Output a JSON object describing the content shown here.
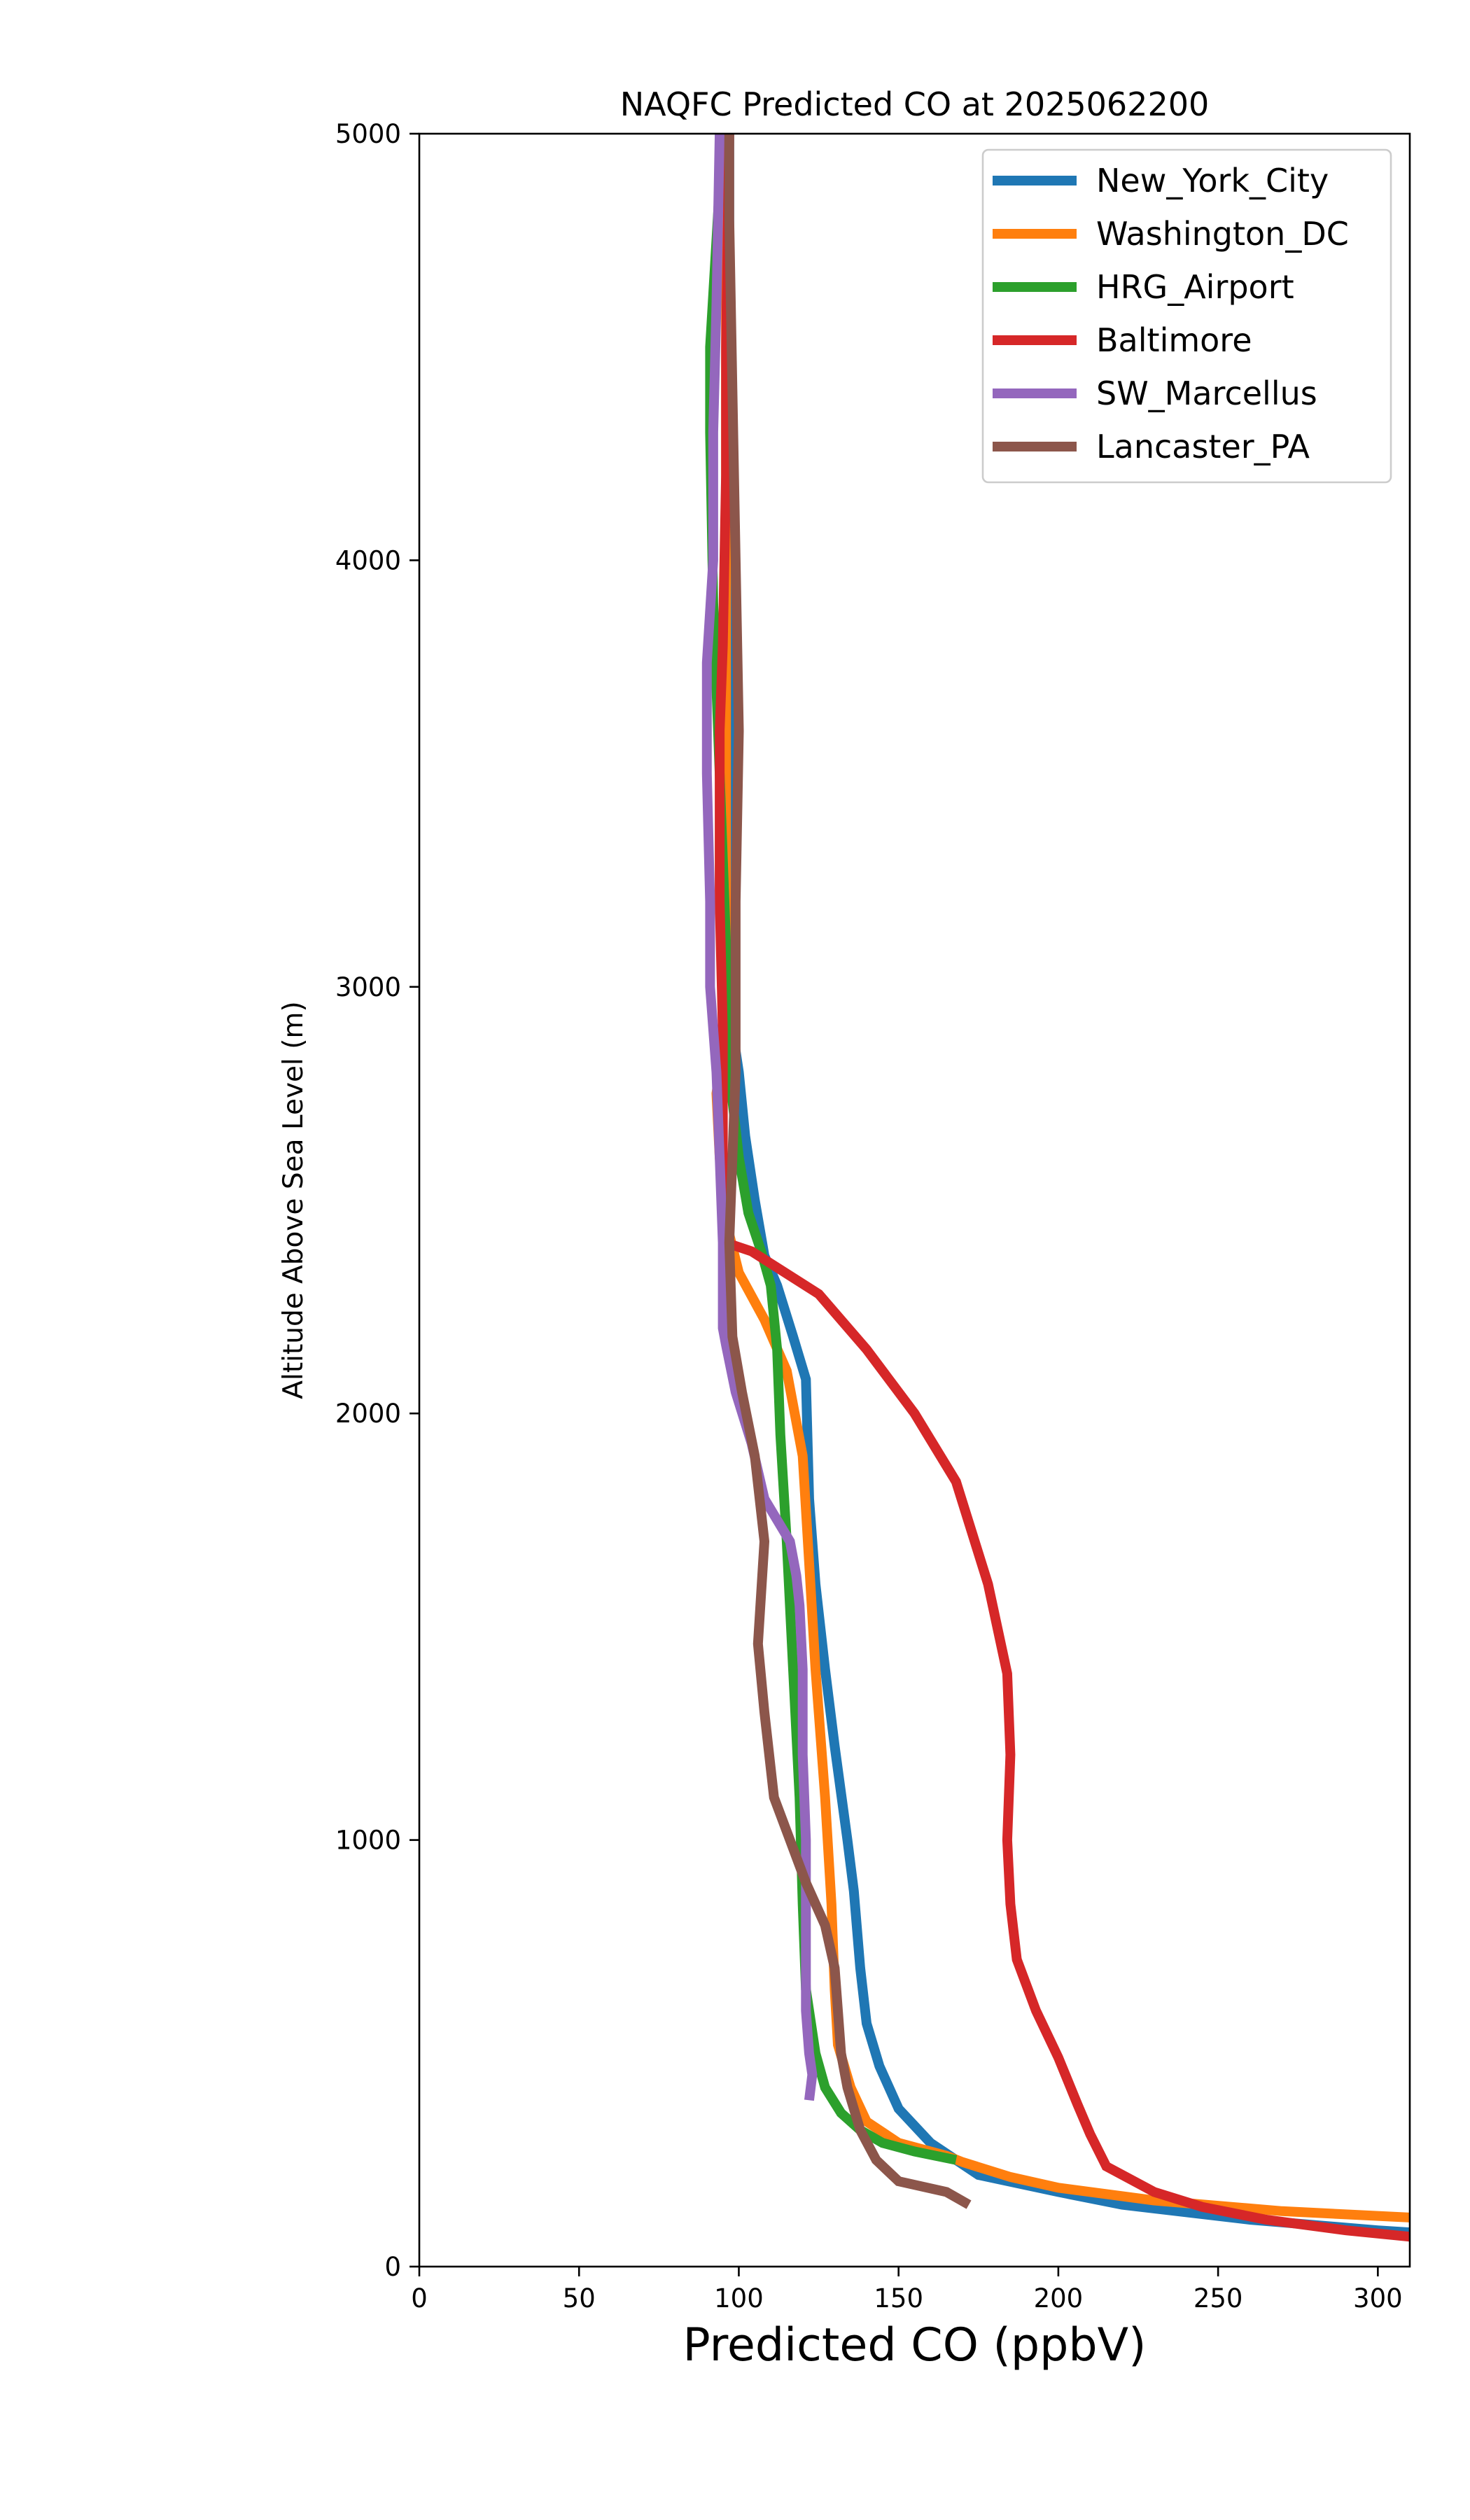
{
  "chart_data": {
    "type": "line",
    "title": "NAQFC Predicted CO at 2025062200",
    "xlabel": "Predicted CO (ppbV)",
    "ylabel": "Altitude Above Sea Level (m)",
    "xlim": [
      0,
      310
    ],
    "ylim": [
      0,
      5000
    ],
    "xticks": [
      0,
      50,
      100,
      150,
      200,
      250,
      300
    ],
    "yticks": [
      0,
      1000,
      2000,
      3000,
      4000,
      5000
    ],
    "grid": false,
    "legend_position": "top-right",
    "series": [
      {
        "name": "New_York_City",
        "color": "#1f77b4",
        "points": [
          [
            310,
            80
          ],
          [
            300,
            85
          ],
          [
            260,
            110
          ],
          [
            220,
            145
          ],
          [
            200,
            175
          ],
          [
            175,
            215
          ],
          [
            168,
            250
          ],
          [
            160,
            290
          ],
          [
            150,
            370
          ],
          [
            144,
            470
          ],
          [
            140,
            570
          ],
          [
            138,
            700
          ],
          [
            136,
            880
          ],
          [
            134,
            1000
          ],
          [
            130,
            1220
          ],
          [
            127,
            1400
          ],
          [
            124,
            1600
          ],
          [
            122,
            1800
          ],
          [
            121,
            2080
          ],
          [
            117,
            2180
          ],
          [
            112,
            2300
          ],
          [
            108,
            2370
          ],
          [
            105,
            2500
          ],
          [
            102,
            2650
          ],
          [
            100,
            2800
          ],
          [
            98,
            2900
          ],
          [
            97,
            3200
          ],
          [
            97,
            3600
          ],
          [
            97,
            4000
          ],
          [
            97,
            4600
          ],
          [
            97,
            5000
          ]
        ]
      },
      {
        "name": "Washington_DC",
        "color": "#ff7f0e",
        "points": [
          [
            310,
            115
          ],
          [
            270,
            130
          ],
          [
            230,
            155
          ],
          [
            200,
            185
          ],
          [
            185,
            210
          ],
          [
            170,
            245
          ],
          [
            165,
            260
          ],
          [
            150,
            290
          ],
          [
            140,
            340
          ],
          [
            135,
            420
          ],
          [
            131,
            520
          ],
          [
            130,
            650
          ],
          [
            129,
            850
          ],
          [
            127,
            1100
          ],
          [
            124,
            1400
          ],
          [
            122,
            1650
          ],
          [
            120,
            1900
          ],
          [
            115,
            2100
          ],
          [
            108,
            2220
          ],
          [
            100,
            2330
          ],
          [
            96,
            2450
          ],
          [
            94,
            2600
          ],
          [
            93,
            2750
          ],
          [
            95,
            2850
          ],
          [
            96,
            3100
          ],
          [
            96,
            3500
          ],
          [
            96,
            4000
          ],
          [
            96,
            4500
          ],
          [
            96,
            5000
          ]
        ]
      },
      {
        "name": "HRG_Airport",
        "color": "#2ca02c",
        "points": [
          [
            168,
            250
          ],
          [
            155,
            270
          ],
          [
            145,
            290
          ],
          [
            138,
            320
          ],
          [
            132,
            360
          ],
          [
            127,
            420
          ],
          [
            124,
            500
          ],
          [
            121,
            650
          ],
          [
            120,
            850
          ],
          [
            119,
            1100
          ],
          [
            117,
            1400
          ],
          [
            115,
            1700
          ],
          [
            113,
            1950
          ],
          [
            112,
            2150
          ],
          [
            110,
            2300
          ],
          [
            107,
            2380
          ],
          [
            103,
            2470
          ],
          [
            100,
            2600
          ],
          [
            97,
            2800
          ],
          [
            96,
            3100
          ],
          [
            94,
            3500
          ],
          [
            92,
            3900
          ],
          [
            91,
            4300
          ],
          [
            91,
            4500
          ],
          [
            93,
            4750
          ],
          [
            95,
            5000
          ]
        ]
      },
      {
        "name": "Baltimore",
        "color": "#d62728",
        "points": [
          [
            310,
            70
          ],
          [
            290,
            85
          ],
          [
            265,
            110
          ],
          [
            245,
            140
          ],
          [
            230,
            175
          ],
          [
            215,
            235
          ],
          [
            210,
            310
          ],
          [
            206,
            380
          ],
          [
            200,
            490
          ],
          [
            193,
            600
          ],
          [
            187,
            720
          ],
          [
            185,
            850
          ],
          [
            184,
            1000
          ],
          [
            185,
            1200
          ],
          [
            184,
            1390
          ],
          [
            178,
            1600
          ],
          [
            168,
            1840
          ],
          [
            155,
            2000
          ],
          [
            140,
            2150
          ],
          [
            125,
            2280
          ],
          [
            104,
            2380
          ],
          [
            96,
            2400
          ],
          [
            95,
            2600
          ],
          [
            95,
            2900
          ],
          [
            94,
            3200
          ],
          [
            94,
            3600
          ],
          [
            95,
            3800
          ],
          [
            96,
            4200
          ],
          [
            96,
            4500
          ],
          [
            97,
            5000
          ]
        ]
      },
      {
        "name": "SW_Marcellus",
        "color": "#9467bd",
        "points": [
          [
            122,
            390
          ],
          [
            123,
            450
          ],
          [
            122,
            500
          ],
          [
            121,
            600
          ],
          [
            121,
            800
          ],
          [
            121,
            1000
          ],
          [
            120,
            1200
          ],
          [
            120,
            1400
          ],
          [
            119,
            1550
          ],
          [
            118,
            1620
          ],
          [
            116,
            1700
          ],
          [
            108,
            1800
          ],
          [
            104,
            1930
          ],
          [
            99,
            2050
          ],
          [
            96,
            2160
          ],
          [
            95,
            2200
          ],
          [
            95,
            2400
          ],
          [
            94,
            2600
          ],
          [
            93,
            2800
          ],
          [
            91,
            3000
          ],
          [
            91,
            3200
          ],
          [
            90,
            3500
          ],
          [
            90,
            3760
          ],
          [
            92,
            4000
          ],
          [
            92,
            4300
          ],
          [
            93,
            4600
          ],
          [
            94,
            5000
          ]
        ]
      },
      {
        "name": "Lancaster_PA",
        "color": "#8c564b",
        "points": [
          [
            172,
            145
          ],
          [
            165,
            175
          ],
          [
            150,
            200
          ],
          [
            143,
            250
          ],
          [
            138,
            320
          ],
          [
            134,
            420
          ],
          [
            132,
            500
          ],
          [
            131,
            600
          ],
          [
            130,
            700
          ],
          [
            127,
            800
          ],
          [
            121,
            900
          ],
          [
            116,
            1000
          ],
          [
            111,
            1100
          ],
          [
            108,
            1300
          ],
          [
            106,
            1460
          ],
          [
            108,
            1700
          ],
          [
            105,
            1900
          ],
          [
            101,
            2050
          ],
          [
            98,
            2180
          ],
          [
            97,
            2400
          ],
          [
            98,
            2600
          ],
          [
            99,
            2800
          ],
          [
            99,
            3200
          ],
          [
            100,
            3600
          ],
          [
            99,
            4000
          ],
          [
            98,
            4400
          ],
          [
            97,
            4800
          ],
          [
            97,
            5000
          ]
        ]
      }
    ]
  }
}
